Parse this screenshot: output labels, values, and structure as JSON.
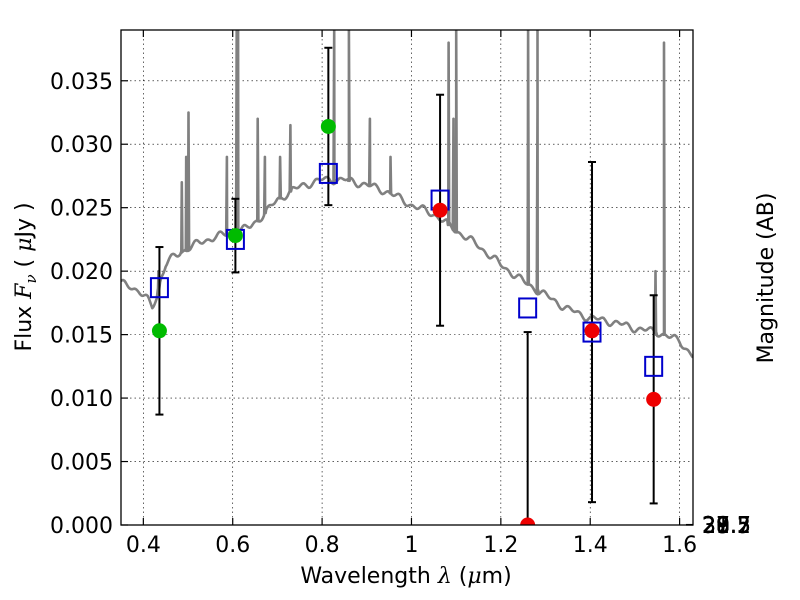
{
  "chart_data": {
    "type": "scatter",
    "xlabel_parts": [
      "Wavelength  ",
      "λ",
      " (",
      "μ",
      "m)"
    ],
    "ylabel_parts": [
      "Flux  ",
      "F",
      "ν",
      "  ( ",
      "μ",
      "Jy )"
    ],
    "y2label": "Magnitude (AB)",
    "xlim": [
      0.35,
      1.63
    ],
    "ylim": [
      0.0,
      0.039
    ],
    "grid": true,
    "x_ticks": [
      {
        "value": 0.4,
        "label": "0.4"
      },
      {
        "value": 0.6,
        "label": "0.6"
      },
      {
        "value": 0.8,
        "label": "0.8"
      },
      {
        "value": 1.0,
        "label": "1"
      },
      {
        "value": 1.2,
        "label": "1.2"
      },
      {
        "value": 1.4,
        "label": "1.4"
      },
      {
        "value": 1.6,
        "label": "1.6"
      }
    ],
    "y_ticks": [
      {
        "value": 0.0,
        "label": "0.000"
      },
      {
        "value": 0.005,
        "label": "0.005"
      },
      {
        "value": 0.01,
        "label": "0.010"
      },
      {
        "value": 0.015,
        "label": "0.015"
      },
      {
        "value": 0.02,
        "label": "0.020"
      },
      {
        "value": 0.025,
        "label": "0.025"
      },
      {
        "value": 0.03,
        "label": "0.030"
      },
      {
        "value": 0.035,
        "label": "0.035"
      }
    ],
    "y2_ticks": [
      {
        "value": 27.5,
        "label": "27.5"
      },
      {
        "value": 27.7,
        "label": "27.7"
      },
      {
        "value": 28,
        "label": "28"
      },
      {
        "value": 28.2,
        "label": "28.2"
      },
      {
        "value": 28.5,
        "label": "28.5"
      },
      {
        "value": 29,
        "label": "29"
      },
      {
        "value": 29.5,
        "label": "29.5"
      },
      {
        "value": 30,
        "label": "30"
      },
      {
        "value": 31,
        "label": "31"
      }
    ],
    "model_spectrum": {
      "color": "#808080",
      "continuum": [
        [
          0.35,
          0.019
        ],
        [
          0.37,
          0.0189
        ],
        [
          0.39,
          0.0184
        ],
        [
          0.41,
          0.0177
        ],
        [
          0.42,
          0.0172
        ],
        [
          0.43,
          0.018
        ],
        [
          0.44,
          0.0195
        ],
        [
          0.45,
          0.0205
        ],
        [
          0.47,
          0.0212
        ],
        [
          0.5,
          0.0218
        ],
        [
          0.53,
          0.0223
        ],
        [
          0.56,
          0.0227
        ],
        [
          0.6,
          0.023
        ],
        [
          0.64,
          0.0235
        ],
        [
          0.67,
          0.0245
        ],
        [
          0.7,
          0.0256
        ],
        [
          0.73,
          0.0263
        ],
        [
          0.76,
          0.0268
        ],
        [
          0.8,
          0.0272
        ],
        [
          0.85,
          0.0272
        ],
        [
          0.9,
          0.0268
        ],
        [
          0.95,
          0.0262
        ],
        [
          1.0,
          0.0252
        ],
        [
          1.05,
          0.0245
        ],
        [
          1.1,
          0.0232
        ],
        [
          1.15,
          0.022
        ],
        [
          1.2,
          0.0205
        ],
        [
          1.25,
          0.0192
        ],
        [
          1.3,
          0.0181
        ],
        [
          1.35,
          0.017
        ],
        [
          1.4,
          0.0163
        ],
        [
          1.45,
          0.016
        ],
        [
          1.5,
          0.0155
        ],
        [
          1.55,
          0.0152
        ],
        [
          1.6,
          0.0145
        ],
        [
          1.63,
          0.0133
        ]
      ],
      "emission_lines": [
        {
          "x": 0.434,
          "peak": 0.02
        },
        {
          "x": 0.486,
          "peak": 0.027
        },
        {
          "x": 0.496,
          "peak": 0.029
        },
        {
          "x": 0.501,
          "peak": 0.0325
        },
        {
          "x": 0.587,
          "peak": 0.029
        },
        {
          "x": 0.656,
          "peak": 0.032
        },
        {
          "x": 0.672,
          "peak": 0.029
        },
        {
          "x": 0.706,
          "peak": 0.029
        },
        {
          "x": 0.729,
          "peak": 0.0315
        },
        {
          "x": 0.907,
          "peak": 0.032
        },
        {
          "x": 0.953,
          "peak": 0.029
        },
        {
          "x": 1.083,
          "peak": 0.038
        },
        {
          "x": 1.094,
          "peak": 0.032
        },
        {
          "x": 1.282,
          "peak": 0.033
        },
        {
          "x": 1.546,
          "peak": 0.02
        },
        {
          "x": 1.565,
          "peak": 0.0345
        },
        {
          "x": 0.609,
          "peak": 0.039
        },
        {
          "x": 0.612,
          "peak": 0.039
        },
        {
          "x": 0.827,
          "peak": 0.039
        },
        {
          "x": 0.86,
          "peak": 0.039
        },
        {
          "x": 1.1,
          "peak": 0.039
        },
        {
          "x": 1.261,
          "peak": 0.039
        },
        {
          "x": 1.282,
          "peak": 0.039
        },
        {
          "x": 1.565,
          "peak": 0.038
        }
      ]
    },
    "model_boxes": {
      "color": "#0000cc",
      "points": [
        {
          "x": 0.436,
          "y": 0.0187
        },
        {
          "x": 0.606,
          "y": 0.0225
        },
        {
          "x": 0.814,
          "y": 0.0277
        },
        {
          "x": 1.064,
          "y": 0.0256
        },
        {
          "x": 1.26,
          "y": 0.0171
        },
        {
          "x": 1.404,
          "y": 0.0152
        },
        {
          "x": 1.542,
          "y": 0.0125
        }
      ]
    },
    "observed_green": {
      "color": "#00bb00",
      "points": [
        {
          "x": 0.436,
          "y": 0.0153,
          "yerr": [
            0.0087,
            0.0219
          ]
        },
        {
          "x": 0.606,
          "y": 0.0228,
          "yerr": [
            0.0199,
            0.0257
          ]
        },
        {
          "x": 0.814,
          "y": 0.0314,
          "yerr": [
            0.0252,
            0.0376
          ]
        }
      ]
    },
    "observed_red": {
      "color": "#ee0000",
      "points": [
        {
          "x": 1.064,
          "y": 0.0248,
          "yerr": [
            0.0157,
            0.0339
          ]
        },
        {
          "x": 1.26,
          "y": 0.0,
          "yerr": [
            0.0,
            0.0152
          ]
        },
        {
          "x": 1.404,
          "y": 0.0153,
          "yerr": [
            0.0018,
            0.0286
          ]
        },
        {
          "x": 1.542,
          "y": 0.0099,
          "yerr": [
            0.0017,
            0.0181
          ]
        }
      ]
    }
  }
}
